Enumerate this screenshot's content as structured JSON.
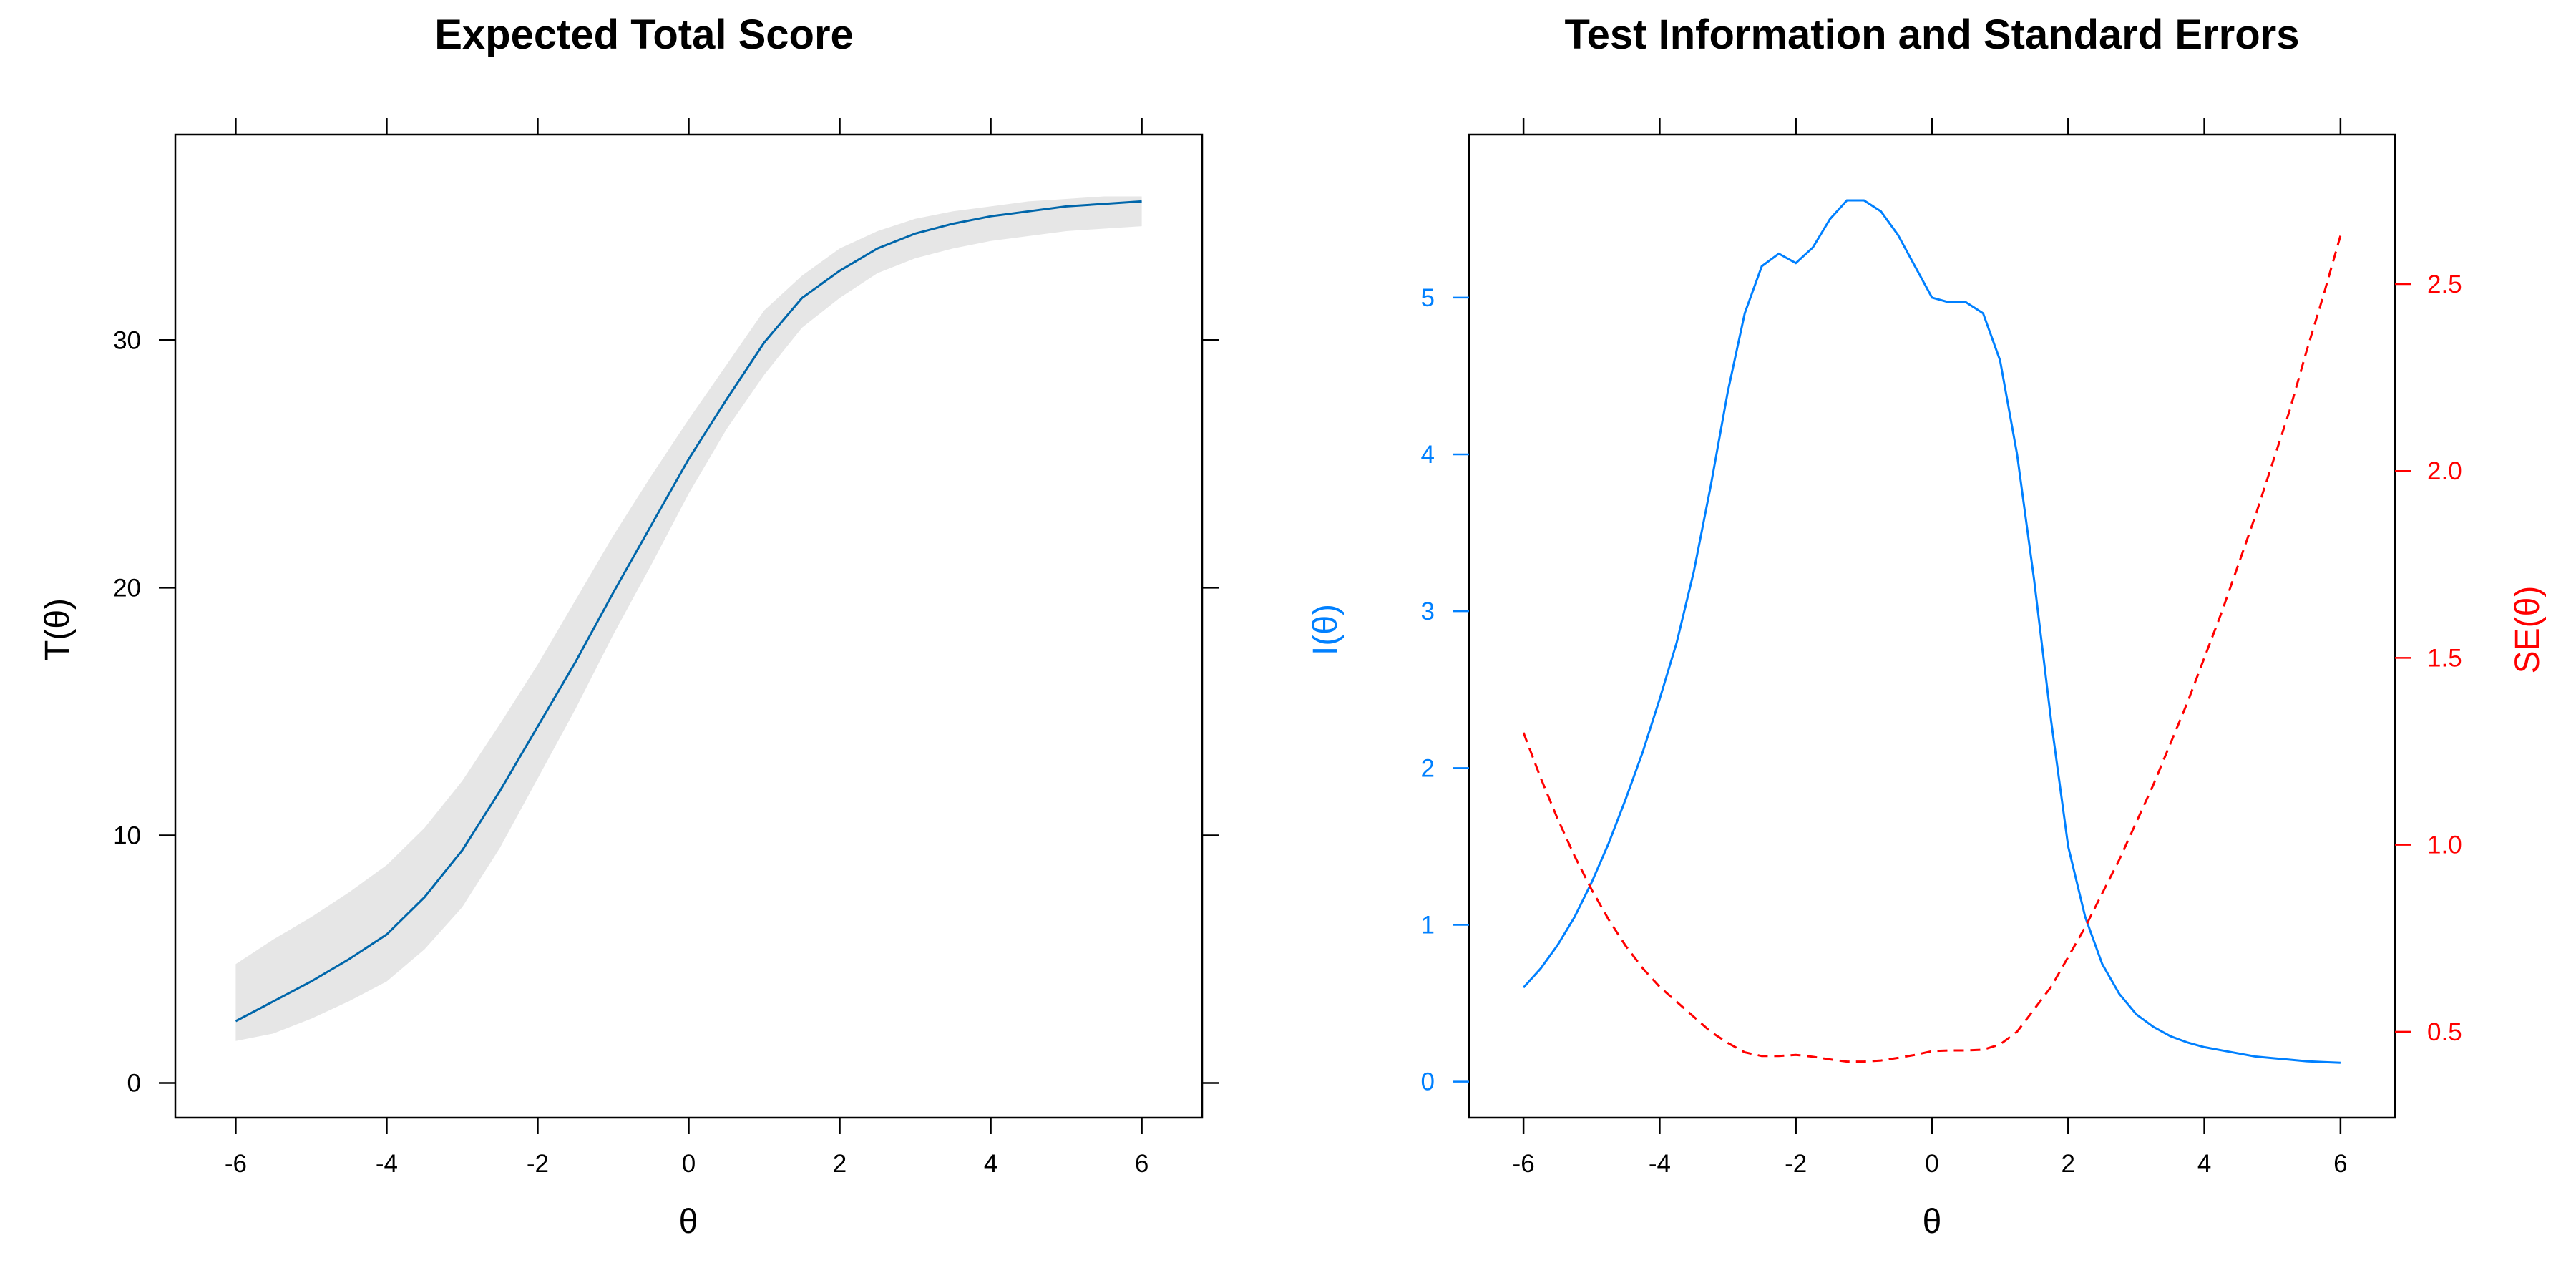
{
  "chart_data": [
    {
      "type": "line",
      "title": "Expected Total Score",
      "xlabel": "θ",
      "ylabel": "T(θ)",
      "xlim": [
        -6.8,
        6.8
      ],
      "ylim": [
        -1.4,
        38.3
      ],
      "xticks": [
        -6,
        -4,
        -2,
        0,
        2,
        4,
        6
      ],
      "yticks": [
        0,
        10,
        20,
        30
      ],
      "grid": false,
      "legend": "none",
      "colors": {
        "line": "#0066AA",
        "band": "#E6E6E6"
      },
      "x": [
        -6,
        -5.5,
        -5,
        -4.5,
        -4,
        -3.5,
        -3,
        -2.5,
        -2,
        -1.5,
        -1,
        -0.5,
        0,
        0.5,
        1,
        1.5,
        2,
        2.5,
        3,
        3.5,
        4,
        4.5,
        5,
        5.5,
        6
      ],
      "y": [
        2.5,
        3.3,
        4.1,
        5.0,
        6.0,
        7.5,
        9.4,
        11.8,
        14.4,
        17.0,
        19.8,
        22.5,
        25.2,
        27.6,
        29.9,
        31.7,
        32.8,
        33.7,
        34.3,
        34.7,
        35.0,
        35.2,
        35.4,
        35.5,
        35.6
      ],
      "y_lower": [
        1.7,
        2.0,
        2.6,
        3.3,
        4.1,
        5.4,
        7.1,
        9.5,
        12.3,
        15.1,
        18.1,
        20.9,
        23.8,
        26.4,
        28.6,
        30.5,
        31.7,
        32.7,
        33.3,
        33.7,
        34.0,
        34.2,
        34.4,
        34.5,
        34.6
      ],
      "y_upper": [
        4.8,
        5.8,
        6.7,
        7.7,
        8.8,
        10.3,
        12.2,
        14.5,
        16.9,
        19.5,
        22.1,
        24.5,
        26.8,
        29.0,
        31.2,
        32.6,
        33.7,
        34.4,
        34.9,
        35.2,
        35.4,
        35.6,
        35.7,
        35.8,
        35.8
      ]
    },
    {
      "type": "line",
      "title": "Test Information and Standard Errors",
      "xlabel": "θ",
      "ylabel": "I(θ)",
      "ylabel_right": "SE(θ)",
      "xlim": [
        -6.8,
        6.8
      ],
      "ylim": [
        -0.23,
        6.04
      ],
      "ylim_right": [
        0.27,
        2.9
      ],
      "xticks": [
        -6,
        -4,
        -2,
        0,
        2,
        4,
        6
      ],
      "yticks": [
        0,
        1,
        2,
        3,
        4,
        5
      ],
      "yticks_right": [
        "0.5",
        "1.0",
        "1.5",
        "2.0",
        "2.5"
      ],
      "grid": false,
      "legend": "none",
      "colors": {
        "info": "#0080FF",
        "se": "#FF0000"
      },
      "x": [
        -6,
        -5.75,
        -5.5,
        -5.25,
        -5,
        -4.75,
        -4.5,
        -4.25,
        -4,
        -3.75,
        -3.5,
        -3.25,
        -3,
        -2.75,
        -2.5,
        -2.25,
        -2,
        -1.75,
        -1.5,
        -1.25,
        -1,
        -0.75,
        -0.5,
        -0.25,
        0,
        0.25,
        0.5,
        0.75,
        1,
        1.25,
        1.5,
        1.75,
        2,
        2.25,
        2.5,
        2.75,
        3,
        3.25,
        3.5,
        3.75,
        4,
        4.25,
        4.5,
        4.75,
        5,
        5.25,
        5.5,
        5.75,
        6
      ],
      "series": [
        {
          "role": "info",
          "axis": "left",
          "values": [
            0.6,
            0.72,
            0.87,
            1.05,
            1.27,
            1.52,
            1.8,
            2.1,
            2.44,
            2.8,
            3.25,
            3.8,
            4.4,
            4.9,
            5.2,
            5.28,
            5.22,
            5.32,
            5.5,
            5.62,
            5.62,
            5.55,
            5.4,
            5.2,
            5.0,
            4.97,
            4.97,
            4.9,
            4.6,
            4.0,
            3.2,
            2.3,
            1.5,
            1.05,
            0.75,
            0.56,
            0.43,
            0.35,
            0.29,
            0.25,
            0.22,
            0.2,
            0.18,
            0.16,
            0.15,
            0.14,
            0.13,
            0.125,
            0.12
          ]
        },
        {
          "role": "se",
          "axis": "right",
          "values": [
            1.3,
            1.18,
            1.07,
            0.97,
            0.88,
            0.8,
            0.73,
            0.67,
            0.62,
            0.58,
            0.54,
            0.5,
            0.47,
            0.445,
            0.435,
            0.435,
            0.438,
            0.433,
            0.426,
            0.42,
            0.42,
            0.423,
            0.43,
            0.438,
            0.448,
            0.45,
            0.45,
            0.452,
            0.466,
            0.5,
            0.56,
            0.62,
            0.7,
            0.78,
            0.87,
            0.96,
            1.06,
            1.16,
            1.27,
            1.38,
            1.5,
            1.62,
            1.75,
            1.88,
            2.02,
            2.16,
            2.32,
            2.47,
            2.63
          ]
        }
      ]
    }
  ]
}
